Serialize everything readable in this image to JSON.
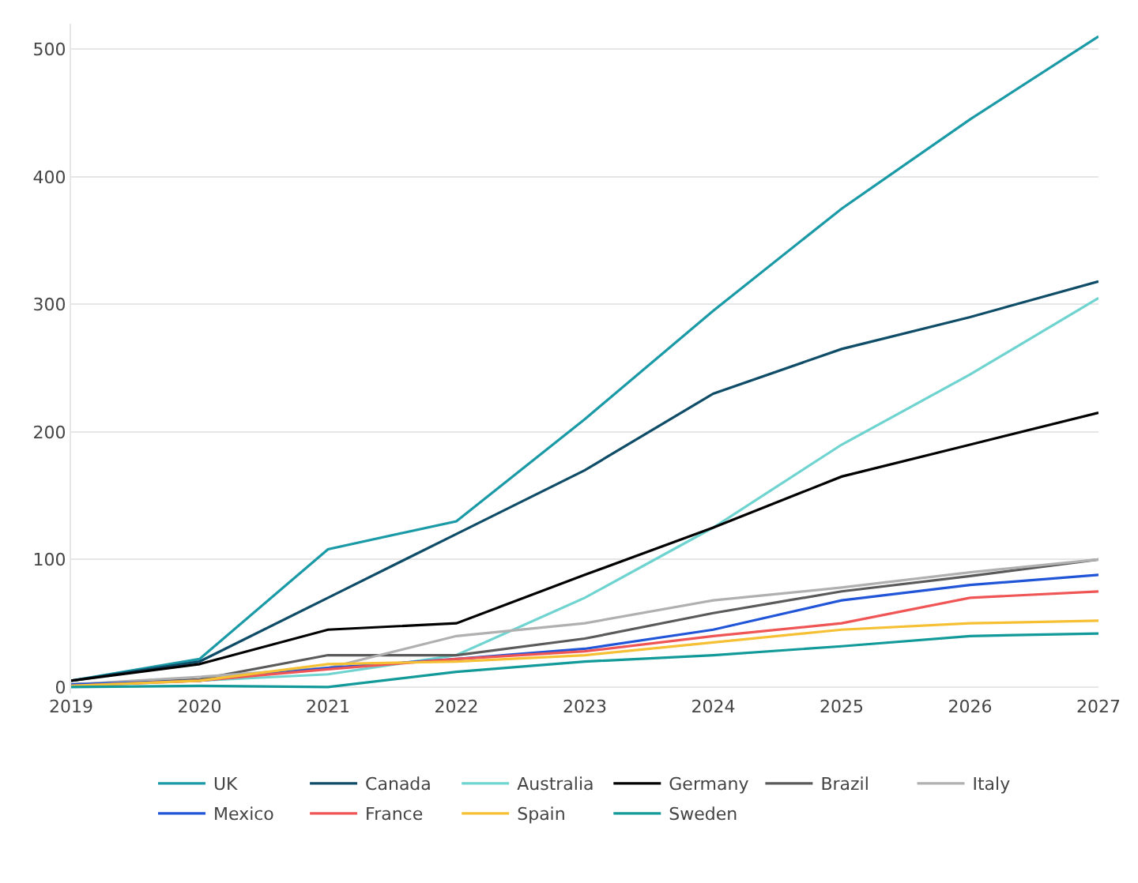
{
  "chart_data": {
    "type": "line",
    "categories": [
      "2019",
      "2020",
      "2021",
      "2022",
      "2023",
      "2024",
      "2025",
      "2026",
      "2027"
    ],
    "series": [
      {
        "name": "UK",
        "color": "#1a9aa6",
        "values": [
          5,
          22,
          108,
          130,
          210,
          295,
          375,
          445,
          510
        ]
      },
      {
        "name": "Canada",
        "color": "#0e4c67",
        "values": [
          5,
          20,
          70,
          120,
          170,
          230,
          265,
          290,
          318
        ]
      },
      {
        "name": "Australia",
        "color": "#6fd4d0",
        "values": [
          2,
          5,
          10,
          25,
          70,
          125,
          190,
          245,
          305
        ]
      },
      {
        "name": "Germany",
        "color": "#000000",
        "values": [
          5,
          18,
          45,
          50,
          88,
          125,
          165,
          190,
          215
        ]
      },
      {
        "name": "Brazil",
        "color": "#5a5a5a",
        "values": [
          2,
          6,
          25,
          25,
          38,
          58,
          75,
          87,
          100
        ]
      },
      {
        "name": "Italy",
        "color": "#b0b0b0",
        "values": [
          2,
          8,
          15,
          40,
          50,
          68,
          78,
          90,
          100
        ]
      },
      {
        "name": "Mexico",
        "color": "#2055d8",
        "values": [
          2,
          5,
          15,
          22,
          30,
          45,
          68,
          80,
          88
        ]
      },
      {
        "name": "France",
        "color": "#f05555",
        "values": [
          1,
          5,
          14,
          22,
          28,
          40,
          50,
          70,
          75
        ]
      },
      {
        "name": "Spain",
        "color": "#f5c033",
        "values": [
          1,
          5,
          18,
          20,
          25,
          35,
          45,
          50,
          52
        ]
      },
      {
        "name": "Sweden",
        "color": "#129a9a",
        "values": [
          0,
          1,
          0,
          12,
          20,
          25,
          32,
          40,
          42
        ]
      }
    ],
    "ylim": [
      -5,
      520
    ],
    "yticks": [
      0,
      100,
      200,
      300,
      400,
      500
    ],
    "grid": "y",
    "legend": "bottom",
    "marker": "none",
    "line_style": "solid"
  }
}
